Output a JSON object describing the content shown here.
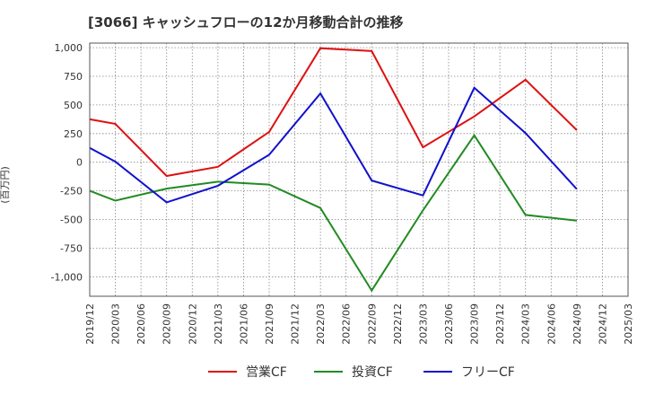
{
  "chart_data": {
    "type": "line",
    "title": "[3066]  キャッシュフローの12か月移動合計の推移",
    "ylabel": "(百万円)",
    "xlabel": "",
    "ylim": [
      -1170,
      1040
    ],
    "yticks": [
      1000,
      750,
      500,
      250,
      0,
      -250,
      -500,
      -750,
      -1000
    ],
    "ytick_labels": [
      "1,000",
      "750",
      "500",
      "250",
      "0",
      "-250",
      "-500",
      "-750",
      "-1,000"
    ],
    "categories": [
      "2019/12",
      "2020/03",
      "2020/06",
      "2020/09",
      "2020/12",
      "2021/03",
      "2021/06",
      "2021/09",
      "2021/12",
      "2022/03",
      "2022/06",
      "2022/09",
      "2022/12",
      "2023/03",
      "2023/06",
      "2023/09",
      "2023/12",
      "2024/03",
      "2024/06",
      "2024/09",
      "2024/12",
      "2025/03"
    ],
    "series": [
      {
        "name": "営業CF",
        "color": "#dd1111",
        "values": [
          375,
          335,
          null,
          -120,
          null,
          -40,
          null,
          265,
          null,
          995,
          null,
          970,
          null,
          130,
          null,
          400,
          null,
          720,
          null,
          280,
          null,
          null
        ]
      },
      {
        "name": "投資CF",
        "color": "#228b22",
        "values": [
          -250,
          -335,
          null,
          -230,
          null,
          -170,
          null,
          -195,
          null,
          -400,
          null,
          -1120,
          null,
          -420,
          null,
          235,
          null,
          -460,
          null,
          -510,
          null,
          null
        ]
      },
      {
        "name": "フリーCF",
        "color": "#1111cc",
        "values": [
          125,
          5,
          null,
          -350,
          null,
          -205,
          null,
          65,
          null,
          600,
          null,
          -160,
          null,
          -290,
          null,
          650,
          null,
          255,
          null,
          -235,
          null,
          null
        ]
      }
    ],
    "legend_position": "bottom",
    "grid": true
  }
}
